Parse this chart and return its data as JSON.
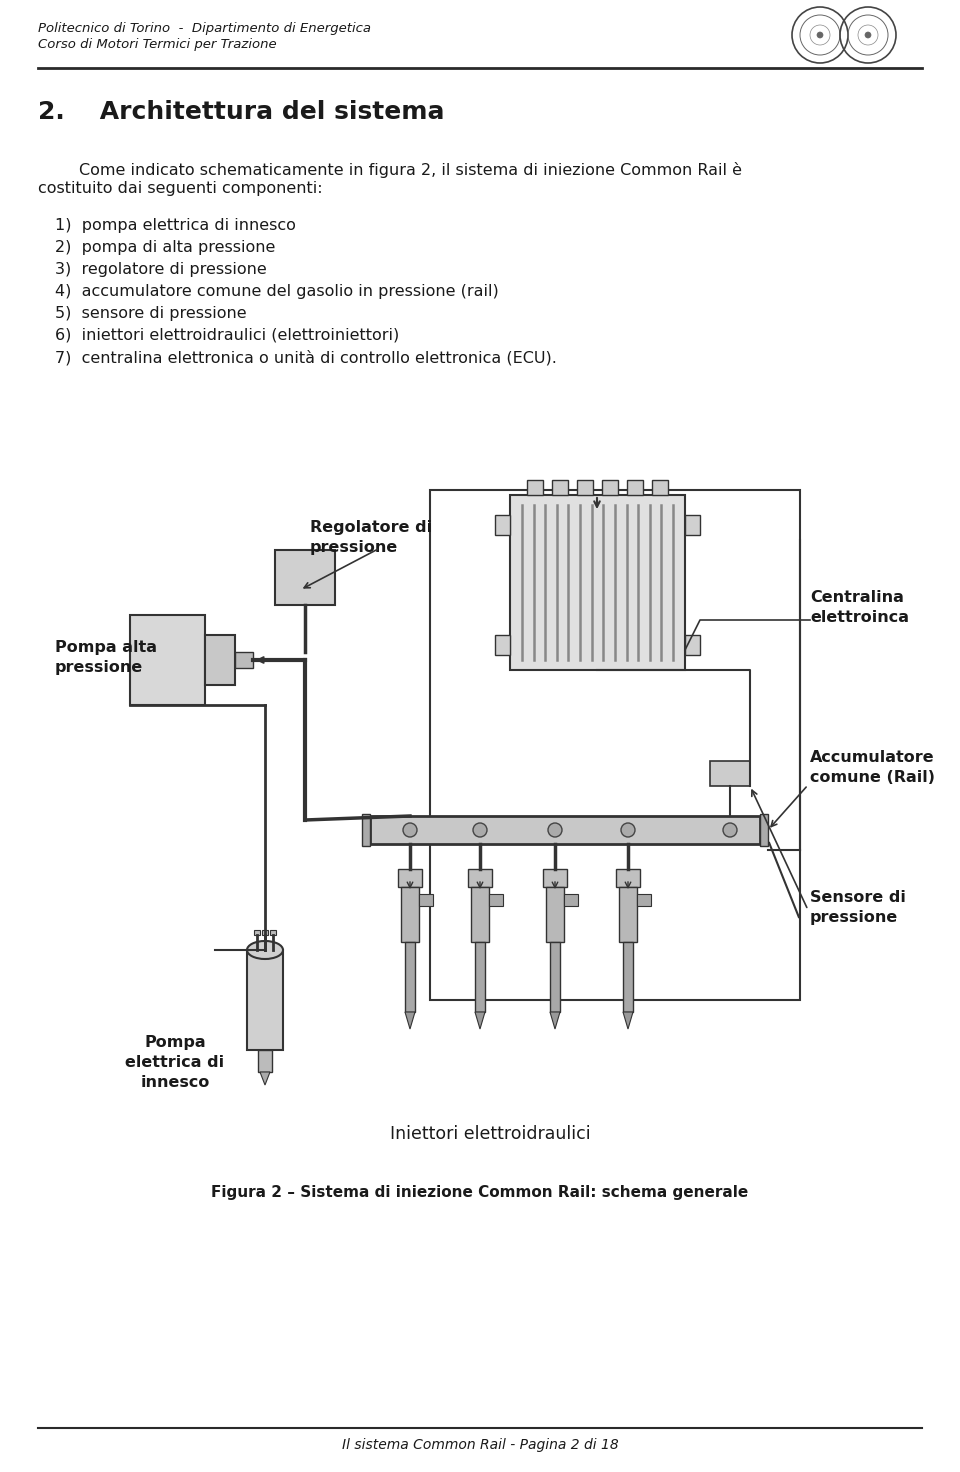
{
  "bg_color": "#ffffff",
  "header_line1": "Politecnico di Torino  -  Dipartimento di Energetica",
  "header_line2": "Corso di Motori Termici per Trazione",
  "header_fontsize": 9.5,
  "title": "2.    Architettura del sistema",
  "title_fontsize": 18,
  "para_intro_line1": "        Come indicato schematicamente in figura 2, il sistema di iniezione Common Rail è",
  "para_intro_line2": "costituito dai seguenti componenti:",
  "para_fontsize": 11.5,
  "list_items": [
    "1)  pompa elettrica di innesco",
    "2)  pompa di alta pressione",
    "3)  regolatore di pressione",
    "4)  accumulatore comune del gasolio in pressione (rail)",
    "5)  sensore di pressione",
    "6)  iniettori elettroidraulici (elettroiniettori)",
    "7)  centralina elettronica o unità di controllo elettronica (ECU)."
  ],
  "list_fontsize": 11.5,
  "footer_text": "Il sistema Common Rail - Pagina 2 di 18",
  "footer_fontsize": 10,
  "fig_caption": "Figura 2 – Sistema di iniezione Common Rail: schema generale",
  "fig_caption_fontsize": 11,
  "label_pompa_alta": "Pompa alta\npressione",
  "label_regolatore": "Regolatore di\npressione",
  "label_centralina": "Centralina\nelettroinca",
  "label_accumulatore": "Accumulatore\ncomune (Rail)",
  "label_sensore": "Sensore di\npressione",
  "label_pompa_el": "Pompa\nelettrica di\ninnesco",
  "label_iniettori": "Iniettori elettroidraulici",
  "text_color": "#1a1a1a",
  "sep_color": "#2a2a2a"
}
